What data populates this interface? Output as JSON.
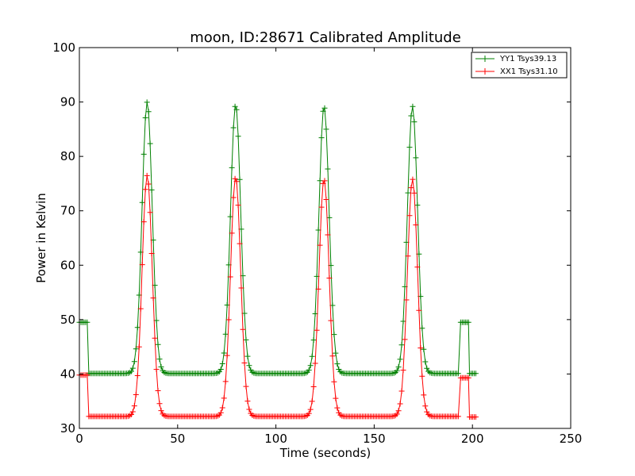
{
  "chart_data": {
    "type": "line",
    "title": "moon, ID:28671 Calibrated Amplitude",
    "xlabel": "Time (seconds)",
    "ylabel": "Power in Kelvin",
    "xlim": [
      0,
      250
    ],
    "ylim": [
      30,
      100
    ],
    "xticks": [
      0,
      50,
      100,
      150,
      200,
      250
    ],
    "yticks": [
      30,
      40,
      50,
      60,
      70,
      80,
      90,
      100
    ],
    "grid": false,
    "legend_position": "top-right",
    "marker": "+",
    "series": [
      {
        "name": "YY1 Tsys39.13",
        "color": "#008000",
        "baseline": 40.1,
        "peak_width": 2.6,
        "peaks": [
          [
            34.5,
            90.0
          ],
          [
            79.5,
            89.5
          ],
          [
            124.5,
            89.2
          ],
          [
            169.5,
            89.2
          ]
        ],
        "cal_start": {
          "x_from": 0,
          "x_to": 4.2,
          "value": 49.5
        },
        "cal_end": {
          "x_from": 194,
          "x_to": 198,
          "value": 49.5
        },
        "tail": {
          "x_from": 198.5,
          "x_to": 202,
          "value": 40.1
        }
      },
      {
        "name": "XX1 Tsys31.10",
        "color": "#ff0000",
        "baseline": 32.2,
        "peak_width": 2.6,
        "peaks": [
          [
            34.5,
            76.5
          ],
          [
            79.5,
            76.2
          ],
          [
            124.5,
            75.8
          ],
          [
            169.5,
            75.8
          ]
        ],
        "cal_start": {
          "x_from": 0,
          "x_to": 4.2,
          "value": 39.8
        },
        "cal_end": {
          "x_from": 194,
          "x_to": 198,
          "value": 39.3
        },
        "tail": {
          "x_from": 198.5,
          "x_to": 202,
          "value": 32.1
        }
      }
    ]
  }
}
